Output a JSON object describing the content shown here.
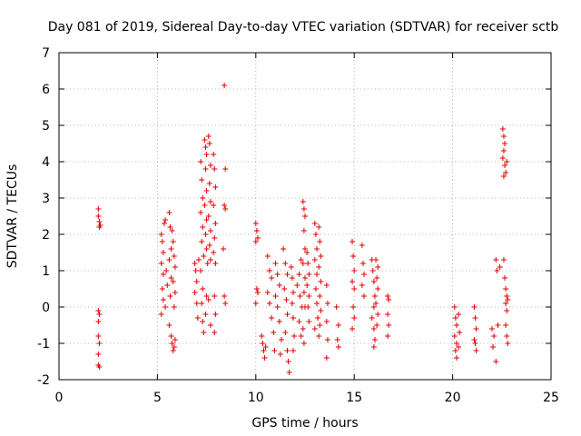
{
  "chart_data": {
    "type": "scatter",
    "title": "Day 081 of 2019, Sidereal Day-to-day VTEC variation (SDTVAR) for receiver sctb",
    "xlabel": "GPS time / hours",
    "ylabel": "SDTVAR / TECUs",
    "xlim": [
      0,
      25
    ],
    "ylim": [
      -2,
      7
    ],
    "xticks": [
      "0",
      "5",
      "10",
      "15",
      "20",
      "25"
    ],
    "yticks": [
      "-2",
      "-1",
      "0",
      "1",
      "2",
      "3",
      "4",
      "5",
      "6",
      "7"
    ],
    "grid": true,
    "marker": "+",
    "color": "#e00000",
    "series": [
      {
        "name": "SDTVAR",
        "points": [
          [
            2.0,
            2.7
          ],
          [
            2.0,
            2.5
          ],
          [
            2.05,
            2.35
          ],
          [
            2.05,
            2.2
          ],
          [
            2.1,
            2.25
          ],
          [
            2.0,
            -0.1
          ],
          [
            2.05,
            -0.2
          ],
          [
            2.0,
            -0.4
          ],
          [
            2.0,
            -0.8
          ],
          [
            2.05,
            -1.0
          ],
          [
            2.0,
            -1.3
          ],
          [
            2.0,
            -1.6
          ],
          [
            2.05,
            -1.65
          ],
          [
            5.2,
            2.0
          ],
          [
            5.25,
            1.8
          ],
          [
            5.3,
            1.5
          ],
          [
            5.2,
            1.2
          ],
          [
            5.3,
            0.9
          ],
          [
            5.25,
            0.5
          ],
          [
            5.3,
            0.2
          ],
          [
            5.2,
            -0.2
          ],
          [
            5.35,
            2.3
          ],
          [
            5.4,
            2.4
          ],
          [
            5.45,
            1.0
          ],
          [
            5.5,
            0.6
          ],
          [
            5.4,
            0.0
          ],
          [
            5.6,
            2.6
          ],
          [
            5.65,
            2.2
          ],
          [
            5.7,
            1.6
          ],
          [
            5.6,
            1.3
          ],
          [
            5.7,
            0.8
          ],
          [
            5.65,
            0.3
          ],
          [
            5.6,
            -0.5
          ],
          [
            5.7,
            -0.8
          ],
          [
            5.75,
            -1.0
          ],
          [
            5.8,
            -1.2
          ],
          [
            5.85,
            -1.1
          ],
          [
            5.9,
            -0.9
          ],
          [
            5.75,
            2.1
          ],
          [
            5.8,
            1.8
          ],
          [
            5.85,
            1.4
          ],
          [
            5.9,
            1.1
          ],
          [
            5.8,
            0.7
          ],
          [
            5.9,
            0.4
          ],
          [
            5.85,
            0.0
          ],
          [
            6.9,
            1.2
          ],
          [
            6.95,
            1.0
          ],
          [
            7.0,
            0.7
          ],
          [
            6.9,
            0.4
          ],
          [
            7.0,
            0.1
          ],
          [
            7.05,
            -0.3
          ],
          [
            7.1,
            1.3
          ],
          [
            7.2,
            4.0
          ],
          [
            7.25,
            3.5
          ],
          [
            7.3,
            3.0
          ],
          [
            7.2,
            2.6
          ],
          [
            7.3,
            2.2
          ],
          [
            7.25,
            1.8
          ],
          [
            7.35,
            1.4
          ],
          [
            7.2,
            1.0
          ],
          [
            7.3,
            0.5
          ],
          [
            7.25,
            0.1
          ],
          [
            7.3,
            -0.4
          ],
          [
            7.35,
            -0.7
          ],
          [
            7.4,
            4.6
          ],
          [
            7.45,
            4.4
          ],
          [
            7.5,
            4.2
          ],
          [
            7.45,
            3.8
          ],
          [
            7.5,
            3.2
          ],
          [
            7.4,
            2.8
          ],
          [
            7.5,
            2.4
          ],
          [
            7.45,
            2.0
          ],
          [
            7.5,
            1.6
          ],
          [
            7.55,
            1.2
          ],
          [
            7.5,
            0.3
          ],
          [
            7.45,
            -0.2
          ],
          [
            7.6,
            4.7
          ],
          [
            7.65,
            4.5
          ],
          [
            7.7,
            3.9
          ],
          [
            7.65,
            3.4
          ],
          [
            7.7,
            2.9
          ],
          [
            7.6,
            2.5
          ],
          [
            7.7,
            2.1
          ],
          [
            7.65,
            1.7
          ],
          [
            7.7,
            1.3
          ],
          [
            7.6,
            0.2
          ],
          [
            7.7,
            -0.5
          ],
          [
            7.85,
            4.2
          ],
          [
            7.9,
            3.8
          ],
          [
            7.95,
            3.3
          ],
          [
            7.85,
            2.8
          ],
          [
            7.95,
            2.3
          ],
          [
            7.9,
            1.9
          ],
          [
            7.85,
            1.5
          ],
          [
            7.95,
            1.2
          ],
          [
            7.9,
            0.3
          ],
          [
            7.95,
            -0.2
          ],
          [
            7.9,
            -0.7
          ],
          [
            8.4,
            6.1
          ],
          [
            8.45,
            3.8
          ],
          [
            8.4,
            2.8
          ],
          [
            8.45,
            2.7
          ],
          [
            8.35,
            1.6
          ],
          [
            8.4,
            0.3
          ],
          [
            8.45,
            0.1
          ],
          [
            10.0,
            2.3
          ],
          [
            10.05,
            2.1
          ],
          [
            10.1,
            1.9
          ],
          [
            10.0,
            1.8
          ],
          [
            10.05,
            0.5
          ],
          [
            10.1,
            0.4
          ],
          [
            10.0,
            0.1
          ],
          [
            10.3,
            -0.8
          ],
          [
            10.35,
            -1.0
          ],
          [
            10.4,
            -1.2
          ],
          [
            10.45,
            -1.4
          ],
          [
            10.5,
            -1.1
          ],
          [
            10.6,
            1.4
          ],
          [
            10.7,
            1.0
          ],
          [
            10.8,
            0.8
          ],
          [
            10.6,
            0.4
          ],
          [
            10.7,
            0.1
          ],
          [
            10.8,
            -0.3
          ],
          [
            10.9,
            -0.7
          ],
          [
            10.95,
            -1.2
          ],
          [
            11.0,
            1.2
          ],
          [
            11.1,
            0.9
          ],
          [
            11.2,
            0.6
          ],
          [
            11.0,
            0.3
          ],
          [
            11.1,
            0.0
          ],
          [
            11.2,
            -0.4
          ],
          [
            11.3,
            -0.9
          ],
          [
            11.25,
            -1.3
          ],
          [
            11.4,
            1.6
          ],
          [
            11.5,
            1.2
          ],
          [
            11.6,
            0.9
          ],
          [
            11.45,
            0.5
          ],
          [
            11.55,
            0.2
          ],
          [
            11.6,
            -0.2
          ],
          [
            11.5,
            -0.7
          ],
          [
            11.6,
            -1.2
          ],
          [
            11.65,
            -1.5
          ],
          [
            11.7,
            -1.8
          ],
          [
            11.8,
            1.1
          ],
          [
            11.85,
            0.8
          ],
          [
            11.9,
            0.4
          ],
          [
            11.85,
            0.1
          ],
          [
            11.9,
            -0.3
          ],
          [
            11.95,
            -0.8
          ],
          [
            11.9,
            -1.2
          ],
          [
            12.1,
            0.6
          ],
          [
            12.2,
            0.9
          ],
          [
            12.3,
            1.3
          ],
          [
            12.25,
            0.3
          ],
          [
            12.35,
            0.0
          ],
          [
            12.2,
            -0.4
          ],
          [
            12.3,
            -0.8
          ],
          [
            12.4,
            2.9
          ],
          [
            12.45,
            2.7
          ],
          [
            12.5,
            2.5
          ],
          [
            12.45,
            2.1
          ],
          [
            12.5,
            1.6
          ],
          [
            12.4,
            1.2
          ],
          [
            12.5,
            0.8
          ],
          [
            12.45,
            0.4
          ],
          [
            12.5,
            0.0
          ],
          [
            12.4,
            -0.6
          ],
          [
            12.45,
            -1.0
          ],
          [
            12.6,
            1.5
          ],
          [
            12.65,
            1.2
          ],
          [
            12.7,
            0.9
          ],
          [
            12.6,
            0.6
          ],
          [
            12.7,
            0.3
          ],
          [
            12.65,
            0.0
          ],
          [
            12.7,
            -0.4
          ],
          [
            13.0,
            2.3
          ],
          [
            13.05,
            2.0
          ],
          [
            13.1,
            1.6
          ],
          [
            13.0,
            1.3
          ],
          [
            13.1,
            0.9
          ],
          [
            13.05,
            0.5
          ],
          [
            13.1,
            0.1
          ],
          [
            13.15,
            -0.3
          ],
          [
            13.0,
            -0.6
          ],
          [
            13.2,
            2.2
          ],
          [
            13.25,
            1.8
          ],
          [
            13.3,
            1.4
          ],
          [
            13.2,
            1.1
          ],
          [
            13.3,
            0.7
          ],
          [
            13.25,
            0.3
          ],
          [
            13.3,
            -0.1
          ],
          [
            13.25,
            -0.5
          ],
          [
            13.2,
            -0.8
          ],
          [
            13.6,
            0.6
          ],
          [
            13.65,
            0.1
          ],
          [
            13.6,
            -0.4
          ],
          [
            13.65,
            -0.9
          ],
          [
            13.6,
            -1.4
          ],
          [
            14.1,
            0.0
          ],
          [
            14.2,
            -0.5
          ],
          [
            14.15,
            -0.9
          ],
          [
            14.2,
            -1.1
          ],
          [
            14.9,
            1.8
          ],
          [
            14.95,
            1.4
          ],
          [
            15.0,
            1.0
          ],
          [
            14.9,
            0.7
          ],
          [
            15.0,
            0.5
          ],
          [
            14.95,
            0.0
          ],
          [
            15.0,
            -0.3
          ],
          [
            14.9,
            -0.6
          ],
          [
            15.4,
            1.7
          ],
          [
            15.45,
            1.2
          ],
          [
            15.5,
            0.9
          ],
          [
            15.4,
            0.6
          ],
          [
            15.5,
            0.3
          ],
          [
            15.9,
            1.3
          ],
          [
            15.95,
            1.0
          ],
          [
            16.0,
            0.7
          ],
          [
            16.05,
            0.3
          ],
          [
            16.0,
            0.0
          ],
          [
            15.9,
            -0.3
          ],
          [
            16.0,
            -0.6
          ],
          [
            16.05,
            -0.9
          ],
          [
            16.0,
            -1.1
          ],
          [
            16.1,
            1.3
          ],
          [
            16.2,
            1.1
          ],
          [
            16.15,
            0.8
          ],
          [
            16.2,
            0.5
          ],
          [
            16.1,
            0.1
          ],
          [
            16.2,
            -0.2
          ],
          [
            16.15,
            -0.5
          ],
          [
            16.7,
            0.3
          ],
          [
            16.75,
            0.2
          ],
          [
            16.7,
            -0.2
          ],
          [
            16.75,
            -0.5
          ],
          [
            16.7,
            -0.8
          ],
          [
            20.1,
            0.0
          ],
          [
            20.15,
            -0.3
          ],
          [
            20.2,
            -0.5
          ],
          [
            20.1,
            -0.8
          ],
          [
            20.2,
            -1.0
          ],
          [
            20.15,
            -1.2
          ],
          [
            20.2,
            -1.4
          ],
          [
            20.3,
            -0.2
          ],
          [
            20.35,
            -0.7
          ],
          [
            20.3,
            -1.1
          ],
          [
            21.1,
            0.0
          ],
          [
            21.15,
            -0.3
          ],
          [
            21.2,
            -0.6
          ],
          [
            21.1,
            -0.9
          ],
          [
            21.2,
            -1.2
          ],
          [
            21.15,
            -1.0
          ],
          [
            22.0,
            -0.6
          ],
          [
            22.1,
            -0.8
          ],
          [
            22.05,
            -1.1
          ],
          [
            22.2,
            1.3
          ],
          [
            22.25,
            1.0
          ],
          [
            22.3,
            -0.5
          ],
          [
            22.2,
            -1.5
          ],
          [
            22.4,
            1.1
          ],
          [
            22.55,
            4.9
          ],
          [
            22.6,
            4.7
          ],
          [
            22.65,
            4.5
          ],
          [
            22.6,
            4.3
          ],
          [
            22.55,
            4.1
          ],
          [
            22.65,
            3.9
          ],
          [
            22.7,
            3.7
          ],
          [
            22.6,
            3.6
          ],
          [
            22.75,
            4.0
          ],
          [
            22.6,
            1.3
          ],
          [
            22.65,
            0.8
          ],
          [
            22.7,
            0.5
          ],
          [
            22.75,
            0.3
          ],
          [
            22.7,
            0.1
          ],
          [
            22.75,
            -0.1
          ],
          [
            22.8,
            0.2
          ],
          [
            22.7,
            -0.5
          ],
          [
            22.75,
            -0.8
          ],
          [
            22.8,
            -1.0
          ]
        ]
      }
    ]
  }
}
